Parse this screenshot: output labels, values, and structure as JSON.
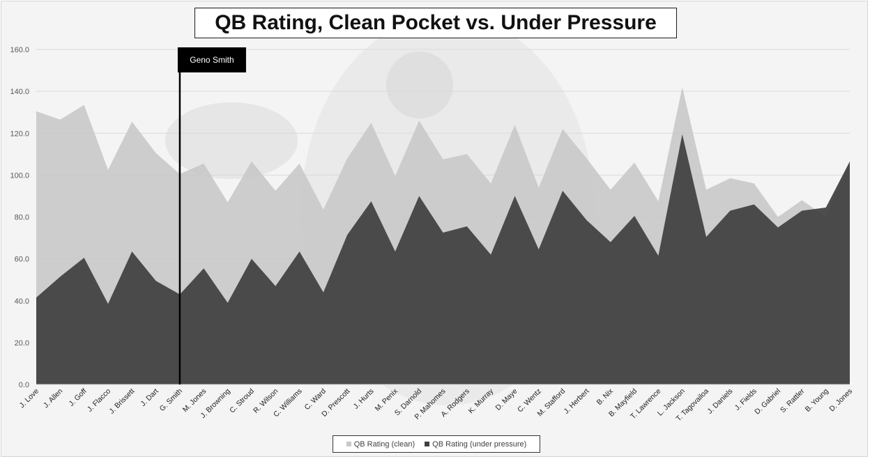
{
  "chart_data": {
    "type": "area",
    "title": "QB Rating, Clean Pocket vs. Under Pressure",
    "categories": [
      "J. Love",
      "J. Allen",
      "J. Goff",
      "J. Flacco",
      "J. Brissett",
      "J. Dart",
      "G. Smith",
      "M. Jones",
      "J. Browning",
      "C. Stroud",
      "R. Wilson",
      "C. Williams",
      "C. Ward",
      "D. Prescott",
      "J. Hurts",
      "M. Penix",
      "S. Darnold",
      "P. Mahomes",
      "A. Rodgers",
      "K. Murray",
      "D. Maye",
      "C. Wentz",
      "M. Stafford",
      "J. Herbert",
      "B. Nix",
      "B. Mayfield",
      "T. Lawrence",
      "L. Jackson",
      "T. Tagovailoa",
      "J. Daniels",
      "J. Fields",
      "D. Gabriel",
      "S. Rattler",
      "B. Young",
      "D. Jones"
    ],
    "series": [
      {
        "name": "QB Rating (clean)",
        "color": "#c9c9c9",
        "values": [
          130.5,
          126.5,
          133.5,
          102.5,
          125.5,
          110.5,
          100.5,
          105.5,
          87.0,
          106.5,
          92.5,
          105.5,
          83.5,
          108.0,
          125.0,
          99.5,
          126.0,
          107.5,
          110.0,
          96.0,
          124.0,
          94.0,
          122.0,
          108.0,
          93.0,
          106.0,
          87.5,
          142.0,
          93.0,
          98.5,
          96.0,
          80.0,
          88.0,
          80.0,
          106.5
        ]
      },
      {
        "name": "QB Rating (under pressure)",
        "color": "#404040",
        "values": [
          41.5,
          51.5,
          60.5,
          38.5,
          63.5,
          49.5,
          43.0,
          55.5,
          39.0,
          60.0,
          47.0,
          63.5,
          44.0,
          71.5,
          87.5,
          63.5,
          90.0,
          72.5,
          75.5,
          62.0,
          90.0,
          64.5,
          92.5,
          78.5,
          68.0,
          80.5,
          61.5,
          119.5,
          70.5,
          83.0,
          86.0,
          75.0,
          83.0,
          84.5,
          106.5
        ]
      }
    ],
    "y_ticks": [
      "0.0",
      "20.0",
      "40.0",
      "60.0",
      "80.0",
      "100.0",
      "120.0",
      "140.0",
      "160.0"
    ],
    "ylim": [
      0,
      160
    ],
    "grid": true,
    "legend_position": "bottom",
    "annotation": {
      "label": "Geno Smith",
      "category": "G. Smith"
    }
  }
}
